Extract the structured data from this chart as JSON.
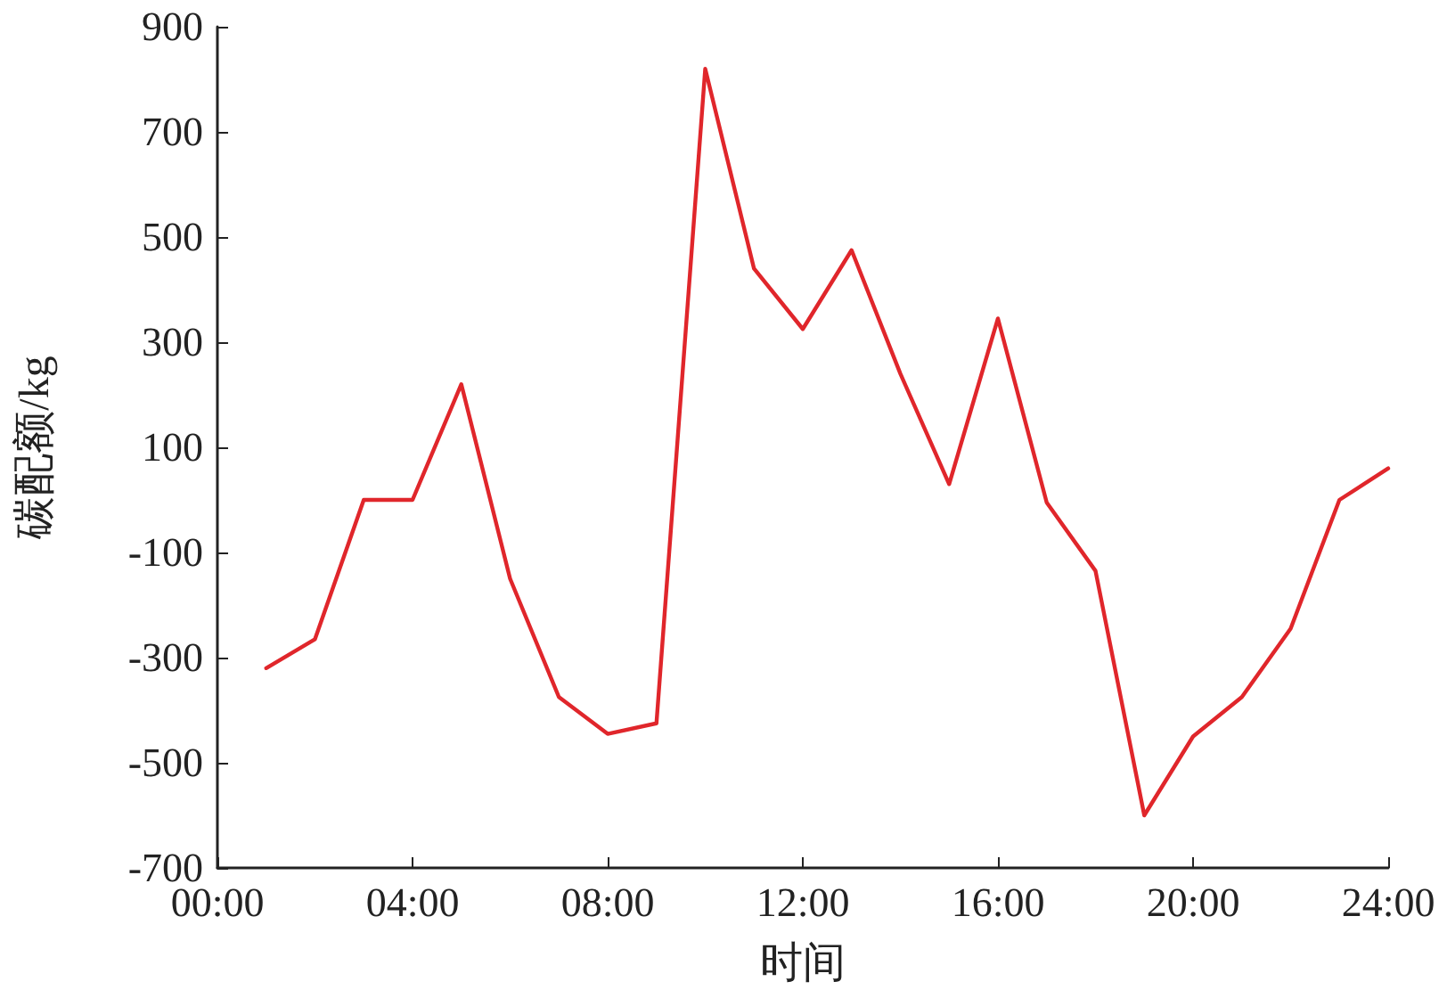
{
  "chart_data": {
    "type": "line",
    "xlabel": "时间",
    "ylabel": "碳配额/kg",
    "x": [
      1,
      2,
      3,
      4,
      5,
      6,
      7,
      8,
      9,
      10,
      11,
      12,
      13,
      14,
      15,
      16,
      17,
      18,
      19,
      20,
      21,
      22,
      23,
      24
    ],
    "series": [
      {
        "color": "#e0262b",
        "values": [
          -320,
          -265,
          0,
          0,
          220,
          -150,
          -375,
          -445,
          -425,
          820,
          440,
          325,
          475,
          240,
          30,
          345,
          -5,
          -135,
          -600,
          -450,
          -375,
          -245,
          0,
          60
        ]
      }
    ],
    "xlim": [
      0,
      24
    ],
    "xticks": [
      {
        "value": 0,
        "label": "00:00"
      },
      {
        "value": 4,
        "label": "04:00"
      },
      {
        "value": 8,
        "label": "08:00"
      },
      {
        "value": 12,
        "label": "12:00"
      },
      {
        "value": 16,
        "label": "16:00"
      },
      {
        "value": 20,
        "label": "20:00"
      },
      {
        "value": 24,
        "label": "24:00"
      }
    ],
    "ylim": [
      -700,
      900
    ],
    "yticks": [
      -700,
      -500,
      -300,
      -100,
      100,
      300,
      500,
      700,
      900
    ],
    "grid": false,
    "marker": "none",
    "line_style": "solid"
  }
}
